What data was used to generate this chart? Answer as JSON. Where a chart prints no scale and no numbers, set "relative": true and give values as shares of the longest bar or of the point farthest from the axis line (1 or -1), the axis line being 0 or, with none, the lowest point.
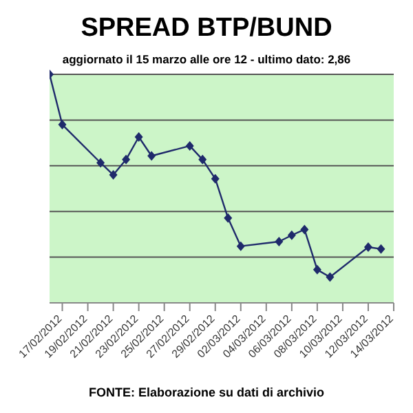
{
  "chart_data": {
    "type": "line",
    "title": "SPREAD BTP/BUND",
    "subtitle": "aggiornato il 15 marzo alle ore 12 - ultimo dato: 2,86",
    "relative": true,
    "x": [
      "2012-02-16",
      "2012-02-17",
      "2012-02-20",
      "2012-02-21",
      "2012-02-22",
      "2012-02-23",
      "2012-02-24",
      "2012-02-27",
      "2012-02-28",
      "2012-02-29",
      "2012-03-01",
      "2012-03-02",
      "2012-03-05",
      "2012-03-06",
      "2012-03-07",
      "2012-03-08",
      "2012-03-09",
      "2012-03-12",
      "2012-03-13"
    ],
    "series": [
      {
        "color": "#1f2a6b",
        "values": [
          1,
          0.78,
          0.613,
          0.56,
          0.627,
          0.726,
          0.643,
          0.687,
          0.627,
          0.543,
          0.371,
          0.248,
          0.268,
          0.296,
          0.321,
          0.145,
          0.113,
          0.244,
          0.236
        ]
      }
    ],
    "xlim": [
      "2012-02-16",
      "2012-03-14"
    ],
    "xticks": [
      {
        "value": "2012-02-17",
        "label": "17/02/2012"
      },
      {
        "value": "2012-02-19",
        "label": "19/02/2012"
      },
      {
        "value": "2012-02-21",
        "label": "21/02/2012"
      },
      {
        "value": "2012-02-23",
        "label": "23/02/2012"
      },
      {
        "value": "2012-02-25",
        "label": "25/02/2012"
      },
      {
        "value": "2012-02-27",
        "label": "27/02/2012"
      },
      {
        "value": "2012-02-29",
        "label": "29/02/2012"
      },
      {
        "value": "2012-03-02",
        "label": "02/03/2012"
      },
      {
        "value": "2012-03-04",
        "label": "04/03/2012"
      },
      {
        "value": "2012-03-06",
        "label": "06/03/2012"
      },
      {
        "value": "2012-03-08",
        "label": "08/03/2012"
      },
      {
        "value": "2012-03-10",
        "label": "10/03/2012"
      },
      {
        "value": "2012-03-12",
        "label": "12/03/2012"
      },
      {
        "value": "2012-03-14",
        "label": "14/03/2012"
      }
    ],
    "grid": "y",
    "legend": false,
    "marker": "diamond",
    "line_style": "solid",
    "annotations": [
      "FONTE: Elaborazione su dati di archivio"
    ]
  }
}
